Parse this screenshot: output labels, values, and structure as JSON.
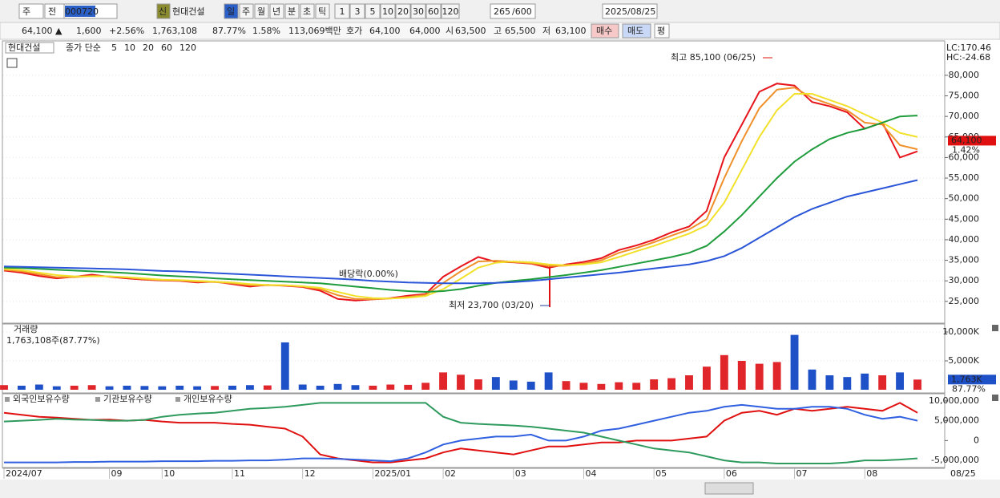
{
  "toolbar": {
    "market": "주",
    "scope": "전",
    "code": "000720",
    "badge": "신",
    "name": "현대건설",
    "periods": [
      "일",
      "주",
      "월",
      "년",
      "분",
      "초",
      "틱"
    ],
    "intervals": [
      "1",
      "3",
      "5",
      "10",
      "20",
      "30",
      "60",
      "120"
    ],
    "count": "265",
    "max": "/600",
    "date": "2025/08/25"
  },
  "quote": {
    "price": "64,100 ▲",
    "change": "1,600",
    "rate": "+2.56%",
    "volume": "1,763,108",
    "volume_ratio": "87.77%",
    "turnover": "1.58%",
    "amount": "113,069백만",
    "ask_label": "호가",
    "ask": "64,100",
    "bid": "64,000",
    "open_label": "시",
    "open": "63,500",
    "high_label": "고",
    "high": "65,500",
    "low_label": "저",
    "low": "63,100",
    "buy": "매수",
    "sell": "매도",
    "avg": "평"
  },
  "chart_data": [
    {
      "type": "line",
      "title": "현대건설",
      "legend_title": "종가 단순",
      "lc": "LC:170.46",
      "hc": "HC:-24.68",
      "categories": [
        "2024/07",
        null,
        null,
        null,
        null,
        null,
        "09",
        null,
        null,
        "10",
        null,
        null,
        null,
        "11",
        null,
        null,
        null,
        "12",
        null,
        null,
        null,
        "2025/01",
        null,
        null,
        null,
        "02",
        null,
        null,
        null,
        "03",
        null,
        null,
        null,
        "04",
        null,
        null,
        null,
        "05",
        null,
        null,
        null,
        "06",
        null,
        null,
        null,
        "07",
        null,
        null,
        null,
        "08",
        null,
        null,
        null
      ],
      "x_end_label": "08/25",
      "series": [
        {
          "name": "5",
          "color": "#e8141c",
          "values": [
            32500,
            32000,
            31200,
            30600,
            31000,
            31500,
            31000,
            30600,
            30300,
            30100,
            30000,
            29600,
            29800,
            29200,
            28600,
            29000,
            28800,
            28500,
            27600,
            25600,
            25200,
            25500,
            25800,
            26400,
            26800,
            31000,
            33500,
            35800,
            34600,
            34500,
            34200,
            33200,
            34000,
            34600,
            35500,
            37500,
            38600,
            40000,
            41800,
            43200,
            47000,
            60000,
            68000,
            76000,
            78000,
            77500,
            73500,
            72500,
            71000,
            67000,
            68500,
            60000,
            61500
          ]
        },
        {
          "name": "10",
          "color": "#f0902a",
          "values": [
            32700,
            32300,
            31600,
            30900,
            30900,
            31200,
            31100,
            30800,
            30400,
            30200,
            30100,
            29800,
            29700,
            29400,
            28900,
            28900,
            28900,
            28600,
            28000,
            26500,
            25600,
            25500,
            25700,
            26100,
            26600,
            29500,
            32300,
            34700,
            34900,
            34600,
            34300,
            33600,
            33700,
            34200,
            35000,
            36800,
            38000,
            39400,
            41000,
            42500,
            45000,
            55000,
            64000,
            72000,
            76500,
            77000,
            74500,
            73000,
            71500,
            68500,
            68000,
            63000,
            62000
          ]
        },
        {
          "name": "20",
          "color": "#f2e12a",
          "values": [
            32900,
            32600,
            32000,
            31400,
            31100,
            31100,
            31100,
            30900,
            30600,
            30300,
            30200,
            30000,
            29800,
            29600,
            29200,
            29000,
            28900,
            28700,
            28300,
            27300,
            26300,
            25800,
            25700,
            25900,
            26300,
            28000,
            30500,
            33200,
            34400,
            34700,
            34500,
            34000,
            33800,
            34000,
            34500,
            35800,
            37200,
            38500,
            40000,
            41500,
            43500,
            49000,
            57000,
            65000,
            71500,
            75500,
            75500,
            74000,
            72500,
            70500,
            68500,
            66000,
            65000
          ]
        },
        {
          "name": "60",
          "color": "#1e9c3c",
          "values": [
            33200,
            33100,
            32900,
            32700,
            32500,
            32300,
            32100,
            31900,
            31600,
            31300,
            31100,
            30900,
            30600,
            30400,
            30200,
            30000,
            29800,
            29600,
            29400,
            29000,
            28600,
            28200,
            27800,
            27500,
            27300,
            27500,
            28000,
            28800,
            29500,
            30000,
            30400,
            30900,
            31400,
            32000,
            32600,
            33400,
            34200,
            35000,
            35800,
            36800,
            38500,
            42000,
            46000,
            50500,
            55000,
            59000,
            62000,
            64500,
            66000,
            67000,
            68500,
            70000,
            70200
          ]
        },
        {
          "name": "120",
          "color": "#2a55d8",
          "values": [
            33500,
            33400,
            33300,
            33200,
            33100,
            33000,
            32900,
            32800,
            32600,
            32400,
            32300,
            32100,
            31900,
            31700,
            31500,
            31300,
            31100,
            30900,
            30700,
            30500,
            30300,
            30000,
            29800,
            29600,
            29500,
            29400,
            29400,
            29400,
            29500,
            29700,
            30000,
            30400,
            30800,
            31200,
            31600,
            32000,
            32500,
            33000,
            33500,
            34000,
            34800,
            36000,
            38000,
            40500,
            43000,
            45500,
            47500,
            49000,
            50500,
            51500,
            52500,
            53500,
            54500
          ]
        }
      ],
      "ylim": [
        19700,
        87200
      ],
      "yticks": [
        {
          "value": 25000,
          "label": "25,000"
        },
        {
          "value": 30000,
          "label": "30,000"
        },
        {
          "value": 35000,
          "label": "35,000"
        },
        {
          "value": 40000,
          "label": "40,000"
        },
        {
          "value": 45000,
          "label": "45,000"
        },
        {
          "value": 50000,
          "label": "50,000"
        },
        {
          "value": 55000,
          "label": "55,000"
        },
        {
          "value": 60000,
          "label": "60,000"
        },
        {
          "value": 65000,
          "label": "65,000"
        },
        {
          "value": 70000,
          "label": "70,000"
        },
        {
          "value": 75000,
          "label": "75,000"
        },
        {
          "value": 80000,
          "label": "80,000"
        }
      ],
      "last": {
        "value": 64100,
        "label": "64,100"
      },
      "last_change": "1.42%",
      "annotations": [
        "최고 85,100 (06/25)",
        "최저 23,700 (03/20)",
        "배당락(0.00%)"
      ]
    },
    {
      "type": "bar",
      "title": "거래량",
      "subtitle": "1,763,108주(87.77%)",
      "up_color": "#e0262b",
      "down_color": "#1e50c8",
      "values": [
        800,
        700,
        900,
        600,
        700,
        800,
        600,
        700,
        650,
        600,
        700,
        600,
        650,
        700,
        800,
        750,
        8200,
        900,
        700,
        1000,
        800,
        700,
        900,
        850,
        1200,
        3000,
        2600,
        1800,
        2200,
        1600,
        1400,
        3000,
        1500,
        1200,
        1000,
        1300,
        1200,
        1800,
        2000,
        2500,
        4000,
        6000,
        5000,
        4500,
        4800,
        9500,
        3500,
        2500,
        2200,
        2800,
        2500,
        3000,
        1763
      ],
      "ylim": [
        0,
        11250
      ],
      "yticks": [
        {
          "value": 5000,
          "label": "5,000K"
        },
        {
          "value": 10000,
          "label": "10,000K"
        }
      ],
      "last": {
        "value": 1763,
        "label": "1,763K"
      },
      "last_ratio": "87.77%"
    },
    {
      "type": "line",
      "series": [
        {
          "name": "외국인보유수량",
          "color": "#e01010",
          "values": [
            7000000,
            6500000,
            6000000,
            5800000,
            5500000,
            5200000,
            5300000,
            5000000,
            5200000,
            4800000,
            4500000,
            4500000,
            4500000,
            4200000,
            4000000,
            3500000,
            3000000,
            1000000,
            -3500000,
            -4500000,
            -5000000,
            -5500000,
            -5500000,
            -5000000,
            -4500000,
            -3000000,
            -2000000,
            -2500000,
            -3000000,
            -3500000,
            -2500000,
            -1500000,
            -1500000,
            -1000000,
            -500000,
            -500000,
            0,
            0,
            0,
            500000,
            1000000,
            5000000,
            7000000,
            7500000,
            6500000,
            8000000,
            7500000,
            8000000,
            8500000,
            8000000,
            7500000,
            9500000,
            7000000
          ]
        },
        {
          "name": "기관보유수량",
          "color": "#3060e0",
          "values": [
            -5500000,
            -5500000,
            -5500000,
            -5500000,
            -5400000,
            -5400000,
            -5300000,
            -5300000,
            -5300000,
            -5200000,
            -5200000,
            -5200000,
            -5100000,
            -5100000,
            -5000000,
            -5000000,
            -4800000,
            -4500000,
            -4500000,
            -4600000,
            -4800000,
            -5000000,
            -5200000,
            -4500000,
            -3000000,
            -1000000,
            0,
            500000,
            1000000,
            1000000,
            1500000,
            0,
            0,
            1000000,
            2500000,
            3000000,
            4000000,
            5000000,
            6000000,
            7000000,
            7500000,
            8500000,
            9000000,
            8500000,
            8000000,
            8000000,
            8500000,
            8500000,
            8000000,
            6500000,
            5500000,
            6000000,
            5000000
          ]
        },
        {
          "name": "개인보유수량",
          "color": "#2e9a5e",
          "values": [
            4800000,
            5000000,
            5200000,
            5500000,
            5300000,
            5200000,
            5000000,
            5000000,
            5200000,
            6000000,
            6500000,
            6800000,
            7000000,
            7500000,
            8000000,
            8200000,
            8500000,
            9000000,
            9500000,
            9500000,
            9500000,
            9500000,
            9500000,
            9500000,
            9500000,
            6000000,
            4500000,
            4200000,
            4000000,
            3800000,
            3500000,
            3000000,
            2500000,
            2000000,
            1000000,
            0,
            -1000000,
            -2000000,
            -2500000,
            -3000000,
            -4000000,
            -5000000,
            -5500000,
            -5500000,
            -5800000,
            -5800000,
            -5800000,
            -5800000,
            -5500000,
            -5000000,
            -5000000,
            -4800000,
            -4500000
          ]
        }
      ],
      "ylim": [
        -6600000,
        11600000
      ],
      "yticks": [
        {
          "value": -5000000,
          "label": "-5,000,000"
        },
        0,
        {
          "value": 5000000,
          "label": "5,000,000"
        },
        {
          "value": 10000000,
          "label": "10,000,000"
        }
      ]
    }
  ]
}
